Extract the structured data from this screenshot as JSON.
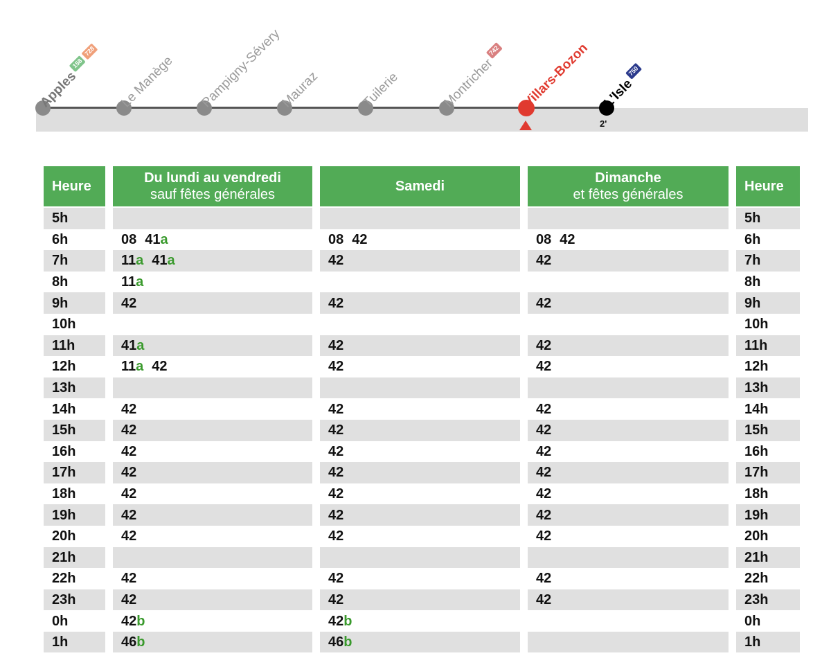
{
  "route": {
    "stops": [
      {
        "name": "Apples",
        "style": "bold",
        "badges": [
          {
            "text": "158",
            "color": "#7fc48a"
          },
          {
            "text": "728",
            "color": "#f0a07a"
          }
        ]
      },
      {
        "name": "Le Manège",
        "style": "normal",
        "badges": []
      },
      {
        "name": "Pampigny-Sévery",
        "style": "normal",
        "badges": []
      },
      {
        "name": "Mauraz",
        "style": "normal",
        "badges": []
      },
      {
        "name": "Tuilerie",
        "style": "normal",
        "badges": []
      },
      {
        "name": "Montricher",
        "style": "normal",
        "badges": [
          {
            "text": "742",
            "color": "#d98080"
          }
        ]
      },
      {
        "name": "Villars-Bozon",
        "style": "current",
        "badges": []
      },
      {
        "name": "L'Isle",
        "style": "terminus",
        "badges": [
          {
            "text": "750",
            "color": "#2b3a8c"
          }
        ]
      }
    ],
    "travel_time": "2'",
    "colors": {
      "current": "#e03a2f",
      "stop": "#8a8a8a",
      "terminus": "#000000",
      "band": "#dedede"
    }
  },
  "table": {
    "header_color": "#52ab56",
    "note_color": "#3a9a2d",
    "hour_label": "Heure",
    "columns": {
      "weekday": {
        "title": "Du lundi au vendredi",
        "subtitle": "sauf fêtes générales"
      },
      "saturday": {
        "title": "Samedi",
        "subtitle": ""
      },
      "sunday": {
        "title": "Dimanche",
        "subtitle": "et fêtes générales"
      }
    },
    "rows": [
      {
        "hour": "5h",
        "weekday": [],
        "saturday": [],
        "sunday": []
      },
      {
        "hour": "6h",
        "weekday": [
          {
            "m": "08",
            "n": ""
          },
          {
            "m": "41",
            "n": "a"
          }
        ],
        "saturday": [
          {
            "m": "08",
            "n": ""
          },
          {
            "m": "42",
            "n": ""
          }
        ],
        "sunday": [
          {
            "m": "08",
            "n": ""
          },
          {
            "m": "42",
            "n": ""
          }
        ]
      },
      {
        "hour": "7h",
        "weekday": [
          {
            "m": "11",
            "n": "a"
          },
          {
            "m": "41",
            "n": "a"
          }
        ],
        "saturday": [
          {
            "m": "42",
            "n": ""
          }
        ],
        "sunday": [
          {
            "m": "42",
            "n": ""
          }
        ]
      },
      {
        "hour": "8h",
        "weekday": [
          {
            "m": "11",
            "n": "a"
          }
        ],
        "saturday": [],
        "sunday": []
      },
      {
        "hour": "9h",
        "weekday": [
          {
            "m": "42",
            "n": ""
          }
        ],
        "saturday": [
          {
            "m": "42",
            "n": ""
          }
        ],
        "sunday": [
          {
            "m": "42",
            "n": ""
          }
        ]
      },
      {
        "hour": "10h",
        "weekday": [],
        "saturday": [],
        "sunday": []
      },
      {
        "hour": "11h",
        "weekday": [
          {
            "m": "41",
            "n": "a"
          }
        ],
        "saturday": [
          {
            "m": "42",
            "n": ""
          }
        ],
        "sunday": [
          {
            "m": "42",
            "n": ""
          }
        ]
      },
      {
        "hour": "12h",
        "weekday": [
          {
            "m": "11",
            "n": "a"
          },
          {
            "m": "42",
            "n": ""
          }
        ],
        "saturday": [
          {
            "m": "42",
            "n": ""
          }
        ],
        "sunday": [
          {
            "m": "42",
            "n": ""
          }
        ]
      },
      {
        "hour": "13h",
        "weekday": [],
        "saturday": [],
        "sunday": []
      },
      {
        "hour": "14h",
        "weekday": [
          {
            "m": "42",
            "n": ""
          }
        ],
        "saturday": [
          {
            "m": "42",
            "n": ""
          }
        ],
        "sunday": [
          {
            "m": "42",
            "n": ""
          }
        ]
      },
      {
        "hour": "15h",
        "weekday": [
          {
            "m": "42",
            "n": ""
          }
        ],
        "saturday": [
          {
            "m": "42",
            "n": ""
          }
        ],
        "sunday": [
          {
            "m": "42",
            "n": ""
          }
        ]
      },
      {
        "hour": "16h",
        "weekday": [
          {
            "m": "42",
            "n": ""
          }
        ],
        "saturday": [
          {
            "m": "42",
            "n": ""
          }
        ],
        "sunday": [
          {
            "m": "42",
            "n": ""
          }
        ]
      },
      {
        "hour": "17h",
        "weekday": [
          {
            "m": "42",
            "n": ""
          }
        ],
        "saturday": [
          {
            "m": "42",
            "n": ""
          }
        ],
        "sunday": [
          {
            "m": "42",
            "n": ""
          }
        ]
      },
      {
        "hour": "18h",
        "weekday": [
          {
            "m": "42",
            "n": ""
          }
        ],
        "saturday": [
          {
            "m": "42",
            "n": ""
          }
        ],
        "sunday": [
          {
            "m": "42",
            "n": ""
          }
        ]
      },
      {
        "hour": "19h",
        "weekday": [
          {
            "m": "42",
            "n": ""
          }
        ],
        "saturday": [
          {
            "m": "42",
            "n": ""
          }
        ],
        "sunday": [
          {
            "m": "42",
            "n": ""
          }
        ]
      },
      {
        "hour": "20h",
        "weekday": [
          {
            "m": "42",
            "n": ""
          }
        ],
        "saturday": [
          {
            "m": "42",
            "n": ""
          }
        ],
        "sunday": [
          {
            "m": "42",
            "n": ""
          }
        ]
      },
      {
        "hour": "21h",
        "weekday": [],
        "saturday": [],
        "sunday": []
      },
      {
        "hour": "22h",
        "weekday": [
          {
            "m": "42",
            "n": ""
          }
        ],
        "saturday": [
          {
            "m": "42",
            "n": ""
          }
        ],
        "sunday": [
          {
            "m": "42",
            "n": ""
          }
        ]
      },
      {
        "hour": "23h",
        "weekday": [
          {
            "m": "42",
            "n": ""
          }
        ],
        "saturday": [
          {
            "m": "42",
            "n": ""
          }
        ],
        "sunday": [
          {
            "m": "42",
            "n": ""
          }
        ]
      },
      {
        "hour": "0h",
        "weekday": [
          {
            "m": "42",
            "n": "b"
          }
        ],
        "saturday": [
          {
            "m": "42",
            "n": "b"
          }
        ],
        "sunday": []
      },
      {
        "hour": "1h",
        "weekday": [
          {
            "m": "46",
            "n": "b"
          }
        ],
        "saturday": [
          {
            "m": "46",
            "n": "b"
          }
        ],
        "sunday": []
      }
    ]
  }
}
